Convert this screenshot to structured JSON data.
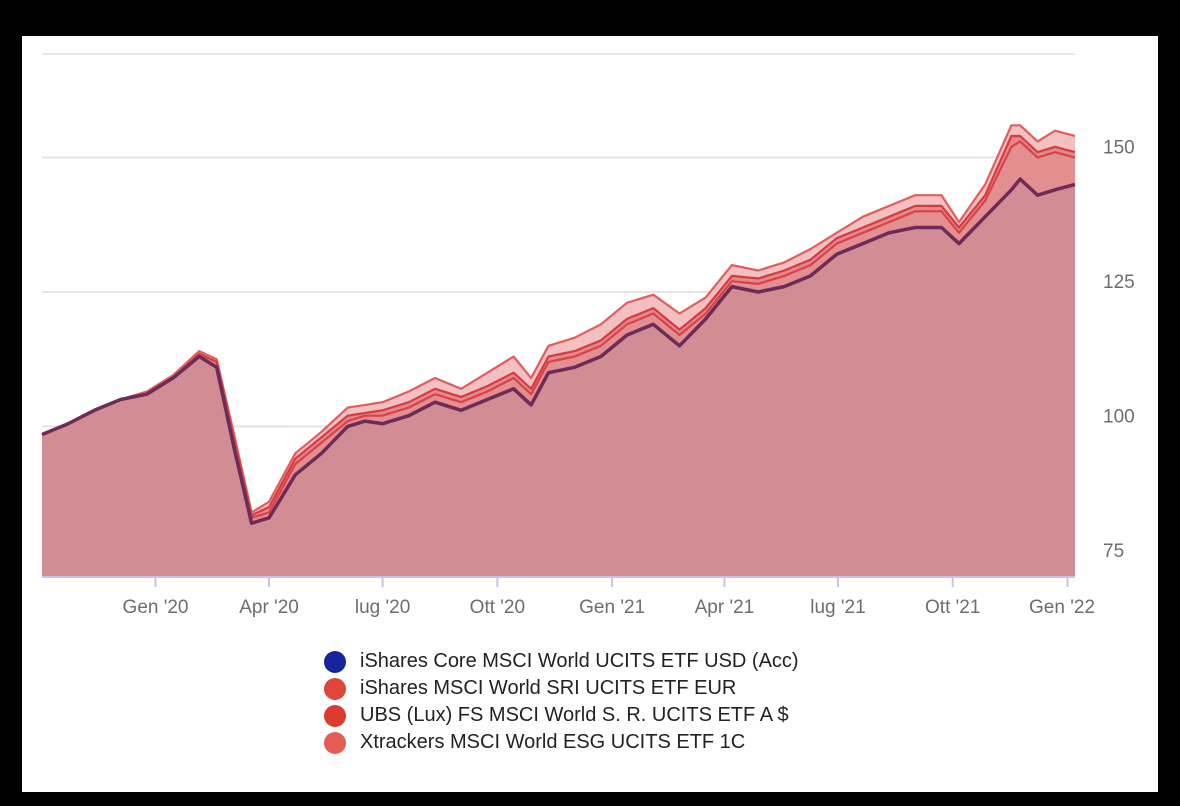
{
  "chart_data": {
    "type": "area",
    "title": "",
    "xlabel": "",
    "ylabel": "",
    "ylim": [
      72,
      170
    ],
    "y_ticks": [
      75,
      100,
      125,
      150
    ],
    "x_tick_labels": [
      "Gen '20",
      "Apr '20",
      "lug '20",
      "Ott '20",
      "Gen '21",
      "Apr '21",
      "lug '21",
      "Ott '21",
      "Gen '22"
    ],
    "x_tick_dates": [
      "2020-01-01",
      "2020-04-01",
      "2020-07-01",
      "2020-10-01",
      "2021-01-01",
      "2021-04-01",
      "2021-07-01",
      "2021-10-01",
      "2022-01-01"
    ],
    "x_range": [
      "2019-10-02",
      "2022-01-07"
    ],
    "grid": true,
    "legend_position": "bottom",
    "dates": [
      "2019-10-02",
      "2019-10-23",
      "2019-11-13",
      "2019-12-04",
      "2019-12-25",
      "2020-01-15",
      "2020-02-05",
      "2020-02-19",
      "2020-03-04",
      "2020-03-18",
      "2020-04-01",
      "2020-04-22",
      "2020-05-13",
      "2020-06-03",
      "2020-06-17",
      "2020-07-01",
      "2020-07-22",
      "2020-08-12",
      "2020-09-02",
      "2020-09-23",
      "2020-10-14",
      "2020-10-28",
      "2020-11-11",
      "2020-12-02",
      "2020-12-23",
      "2021-01-13",
      "2021-02-03",
      "2021-02-24",
      "2021-03-17",
      "2021-04-07",
      "2021-04-28",
      "2021-05-19",
      "2021-06-09",
      "2021-06-30",
      "2021-07-21",
      "2021-08-11",
      "2021-09-01",
      "2021-09-22",
      "2021-10-06",
      "2021-10-27",
      "2021-11-17",
      "2021-11-24",
      "2021-12-08",
      "2021-12-22",
      "2022-01-07"
    ],
    "series": [
      {
        "name": "iShares Core MSCI World UCITS ETF USD (Acc)",
        "color": "#17259c",
        "values": [
          98.5,
          100.5,
          103,
          105,
          106,
          109,
          113,
          111,
          96,
          82,
          83,
          91,
          95,
          100,
          101,
          100.5,
          102,
          104.5,
          103,
          105,
          107,
          104,
          110,
          111,
          113,
          117,
          119,
          115,
          120,
          126,
          125,
          126,
          128,
          132,
          134,
          136,
          137,
          137,
          134,
          139,
          144,
          146,
          143,
          144,
          145
        ]
      },
      {
        "name": "iShares MSCI World SRI UCITS ETF EUR",
        "color": "#e0453a",
        "values": [
          98.5,
          100.5,
          103,
          105,
          106,
          109,
          113,
          111,
          97,
          83,
          84,
          93,
          97,
          101,
          102,
          102,
          103.5,
          106,
          104.5,
          106.5,
          109,
          106,
          112,
          113,
          115,
          119,
          121,
          117,
          121,
          127,
          126.5,
          128,
          130,
          134,
          136,
          138,
          140,
          140,
          136,
          142,
          152,
          153,
          150,
          151,
          150
        ]
      },
      {
        "name": "UBS (Lux) FS MSCI World S. R. UCITS ETF A $",
        "color": "#dc3a2e",
        "values": [
          98.5,
          100.5,
          103,
          105,
          106,
          109,
          113.5,
          112,
          97.5,
          83.5,
          85,
          94,
          98,
          102,
          102.5,
          103,
          104.5,
          107,
          105.5,
          107.5,
          110,
          107,
          113,
          114,
          116,
          120,
          122,
          118,
          122,
          128,
          127.5,
          129,
          131,
          135,
          137,
          139,
          141,
          141,
          137,
          143,
          154,
          154,
          151,
          152,
          151
        ]
      },
      {
        "name": "Xtrackers MSCI World ESG UCITS ETF 1C",
        "color": "#e35d55",
        "values": [
          98.5,
          100.5,
          103,
          105,
          106.5,
          109.5,
          114,
          112.5,
          98.5,
          84,
          86,
          95,
          99,
          103.5,
          104,
          104.5,
          106.5,
          109,
          107,
          110,
          113,
          109,
          115,
          116.5,
          119,
          123,
          124.5,
          121,
          124,
          130,
          129,
          130.5,
          133,
          136,
          139,
          141,
          143,
          143,
          138,
          145,
          156,
          156,
          153,
          155,
          154
        ]
      }
    ]
  }
}
